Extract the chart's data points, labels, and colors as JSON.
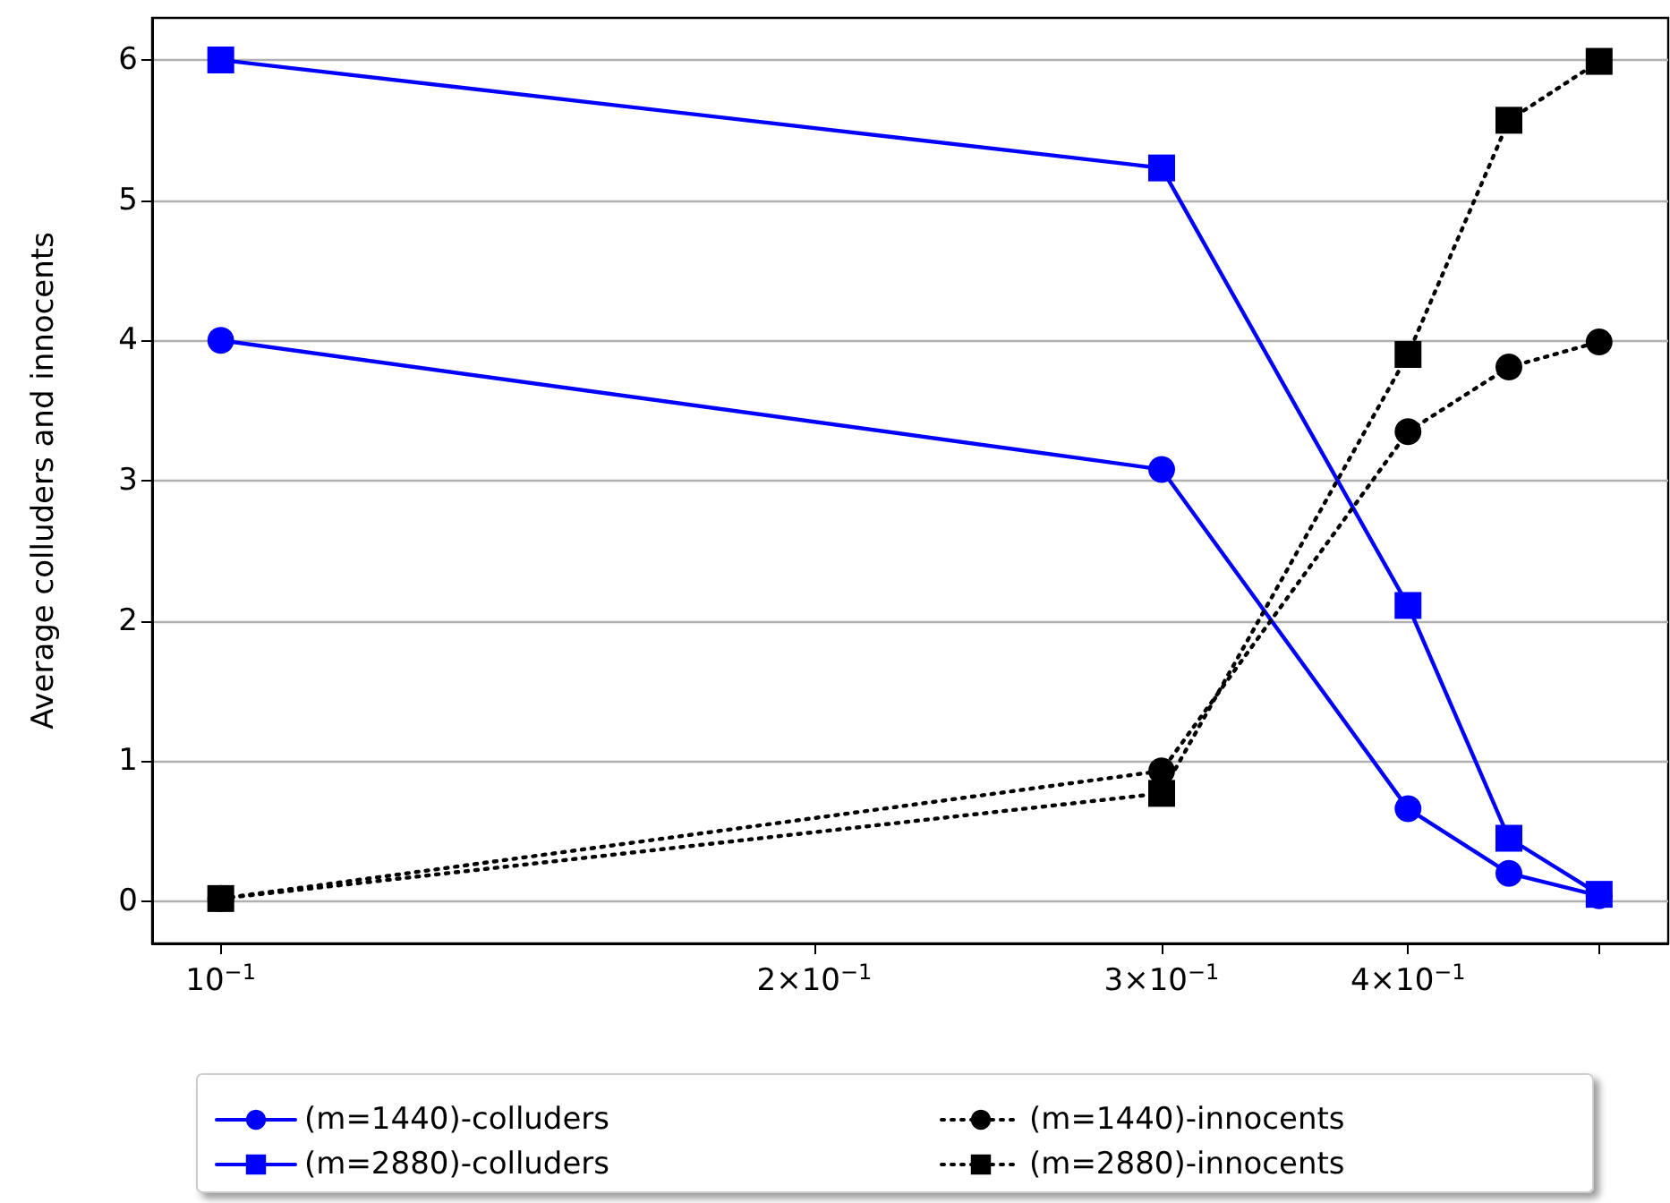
{
  "chart_data": {
    "type": "line",
    "ylabel": "Average colluders and innocents",
    "log": "x",
    "grid": "y",
    "legend": "bottom",
    "xlim": [
      0.0923,
      0.542
    ],
    "ylim": [
      -0.3,
      6.3
    ],
    "xticks": [
      {
        "value": 0.1,
        "label": "10$^{−1}$"
      },
      {
        "value": 0.2,
        "label": "2×10$^{−1}$"
      },
      {
        "value": 0.3,
        "label": "3×10$^{−1}$"
      },
      {
        "value": 0.4,
        "label": "4×10$^{−1}$"
      },
      {
        "value": 0.5,
        "label": null
      }
    ],
    "yticks": [
      0,
      1,
      2,
      3,
      4,
      5,
      6
    ],
    "x": [
      0.1,
      0.3,
      0.4,
      0.45,
      0.5
    ],
    "series": [
      {
        "name": "(m=1440)-colluders",
        "color": "#0000ff",
        "marker": "circle",
        "line_style": "solid",
        "values": [
          4.0,
          3.08,
          0.66,
          0.2,
          0.04
        ]
      },
      {
        "name": "(m=2880)-colluders",
        "color": "#0000ff",
        "marker": "square",
        "line_style": "solid",
        "values": [
          6.0,
          5.23,
          2.11,
          0.45,
          0.05
        ]
      },
      {
        "name": "(m=1440)-innocents",
        "color": "#000000",
        "marker": "circle",
        "line_style": "dotted",
        "values": [
          0.02,
          0.93,
          3.35,
          3.81,
          3.99
        ]
      },
      {
        "name": "(m=2880)-innocents",
        "color": "#000000",
        "marker": "square",
        "line_style": "dotted",
        "values": [
          0.02,
          0.77,
          3.9,
          5.57,
          5.99
        ]
      }
    ]
  }
}
